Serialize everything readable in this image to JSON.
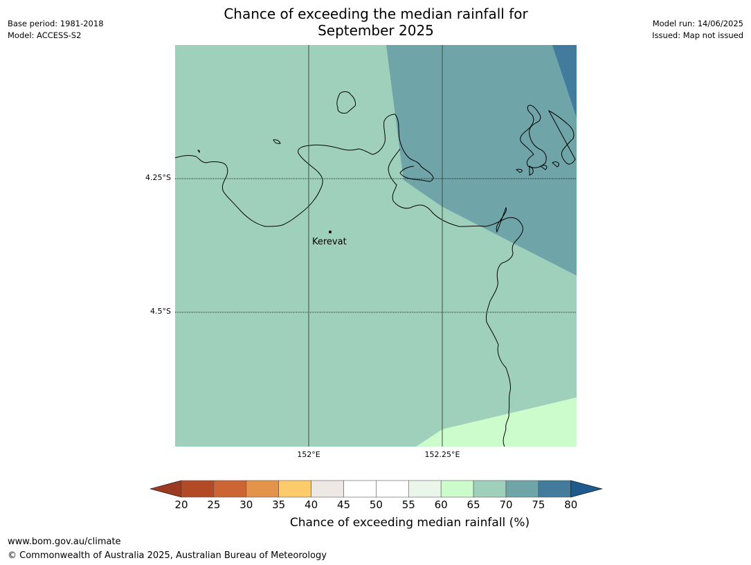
{
  "header": {
    "base_period": "Base period: 1981-2018",
    "model": "Model: ACCESS-S2",
    "model_run": "Model run: 14/06/2025",
    "issued": "Issued: Map not issued"
  },
  "title": {
    "line1": "Chance of exceeding the median rainfall for",
    "line2": "September 2025"
  },
  "map": {
    "latitude_labels": [
      "4.25°S",
      "4.5°S"
    ],
    "longitude_labels": [
      "152°E",
      "152.25°E"
    ],
    "place": {
      "name": "Kerevat"
    }
  },
  "colorbar": {
    "ticks": [
      "20",
      "25",
      "30",
      "35",
      "40",
      "45",
      "50",
      "55",
      "60",
      "65",
      "70",
      "75",
      "80"
    ],
    "colors": [
      "#b24a25",
      "#cc6433",
      "#e3944a",
      "#fdcb69",
      "#ede8e4",
      "#ffffff",
      "#ffffff",
      "#eaf6ea",
      "#ccfccc",
      "#9fd0bb",
      "#6fa4a8",
      "#427b9b"
    ],
    "extend_low_color": "#9a3a23",
    "extend_high_color": "#1e5a8c",
    "title": "Chance of exceeding median rainfall (%)"
  },
  "map_fill_colors": {
    "band_65_70": "#9fd0bb",
    "band_70_75": "#6fa4a8",
    "band_75_80": "#427b9b",
    "band_60_65": "#ccfccc"
  },
  "footer": {
    "url": "www.bom.gov.au/climate",
    "copyright": "© Commonwealth of Australia 2025, Australian Bureau of Meteorology"
  }
}
